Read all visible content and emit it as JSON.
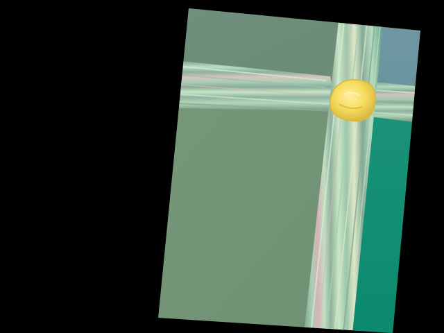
{
  "scene": {
    "background": "#000000",
    "panel_colors": {
      "upper_left": "#6f8f7a",
      "lower_left": "#789879",
      "upper_right": "#6f97a1",
      "lower_right": "#0f8e73",
      "seam_light": "#bfe6c8",
      "seam_pink": "#dca7b2",
      "seam_blue": "#8fb0bf",
      "blob": "#f6dd63"
    }
  }
}
